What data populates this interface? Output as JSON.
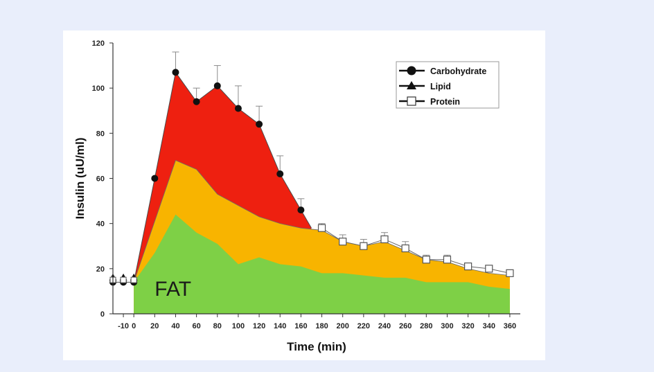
{
  "chart_data": {
    "type": "area",
    "title": "",
    "xlabel": "Time (min)",
    "ylabel": "Insulin (uU/ml)",
    "xlim": [
      -20,
      370
    ],
    "ylim": [
      0,
      120
    ],
    "x_ticks": [
      -10,
      0,
      20,
      40,
      60,
      80,
      100,
      120,
      140,
      160,
      180,
      200,
      220,
      240,
      260,
      280,
      300,
      320,
      340,
      360
    ],
    "y_ticks": [
      0,
      20,
      40,
      60,
      80,
      100,
      120
    ],
    "series": [
      {
        "name": "Carbohydrate",
        "marker": "circle",
        "fill": "#ee2010",
        "x": [
          -20,
          -10,
          0,
          20,
          40,
          60,
          80,
          100,
          120,
          140,
          160,
          170
        ],
        "values": [
          14,
          14,
          14,
          60,
          107,
          94,
          101,
          91,
          84,
          62,
          46,
          38
        ],
        "error_bars": [
          null,
          null,
          null,
          null,
          9,
          6,
          9,
          10,
          8,
          8,
          5,
          null
        ]
      },
      {
        "name": "Lipid",
        "marker": "triangle",
        "fill": "#f8b400",
        "x": [
          0,
          40,
          60,
          80,
          100,
          120,
          140,
          160,
          180,
          200,
          220,
          240,
          260,
          280,
          300,
          320,
          340,
          360
        ],
        "values": [
          14,
          68,
          64,
          53,
          48,
          43,
          40,
          38,
          37,
          32,
          30,
          32,
          28,
          24,
          23,
          20,
          18,
          17
        ]
      },
      {
        "name": "Protein",
        "marker": "square-open",
        "fill": "#7ed046",
        "x": [
          -20,
          -10,
          0,
          20,
          40,
          60,
          80,
          100,
          120,
          140,
          160,
          180,
          200,
          220,
          240,
          260,
          280,
          300,
          320,
          340,
          360
        ],
        "values": [
          15,
          15,
          14,
          27,
          44,
          36,
          31,
          22,
          25,
          22,
          21,
          18,
          18,
          17,
          16,
          16,
          14,
          14,
          14,
          12,
          11
        ],
        "marker_points": {
          "x": [
            180,
            200,
            220,
            240,
            260,
            280,
            300,
            320,
            340,
            360
          ],
          "values": [
            38,
            32,
            30,
            33,
            29,
            24,
            24,
            21,
            20,
            18
          ],
          "error_bars": [
            2,
            3,
            3,
            3,
            3,
            2,
            2,
            null,
            null,
            null
          ]
        }
      }
    ],
    "legend": {
      "position": "top-right",
      "entries": [
        "Carbohydrate",
        "Lipid",
        "Protein"
      ]
    },
    "annotations": [
      {
        "text": "FAT",
        "x": 20,
        "y": 8
      }
    ]
  }
}
